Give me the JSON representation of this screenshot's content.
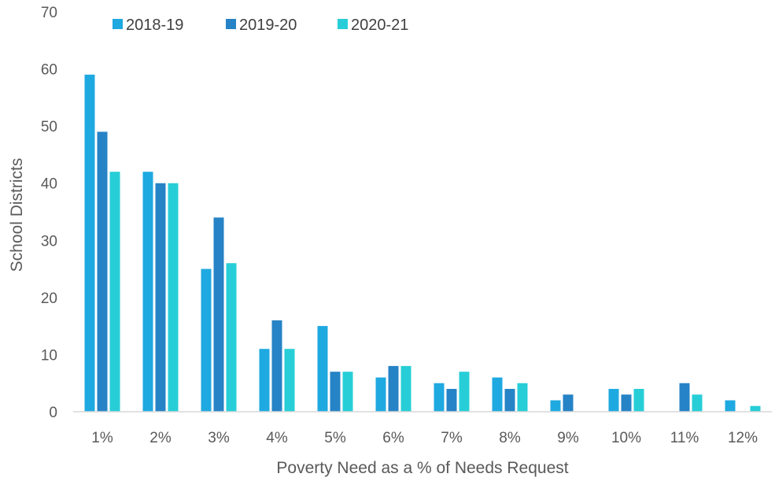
{
  "chart_data": {
    "type": "bar",
    "title": "",
    "xlabel": "Poverty Need as a % of Needs Request",
    "ylabel": "School Districts",
    "ylim": [
      0,
      70
    ],
    "yticks": [
      "0",
      "10",
      "20",
      "30",
      "40",
      "50",
      "60",
      "70"
    ],
    "grid": false,
    "legend_position": "top-left",
    "categories": [
      "1%",
      "2%",
      "3%",
      "4%",
      "5%",
      "6%",
      "7%",
      "8%",
      "9%",
      "10%",
      "11%",
      "12%"
    ],
    "series": [
      {
        "name": "2018-19",
        "color": "#1FA9E1",
        "values": [
          59,
          42,
          25,
          11,
          15,
          6,
          5,
          6,
          2,
          4,
          0,
          2
        ]
      },
      {
        "name": "2019-20",
        "color": "#2683C6",
        "values": [
          49,
          40,
          34,
          16,
          7,
          8,
          4,
          4,
          3,
          3,
          5,
          0
        ]
      },
      {
        "name": "2020-21",
        "color": "#27CED7",
        "values": [
          42,
          40,
          26,
          11,
          7,
          8,
          7,
          5,
          0,
          4,
          3,
          1
        ]
      }
    ]
  }
}
